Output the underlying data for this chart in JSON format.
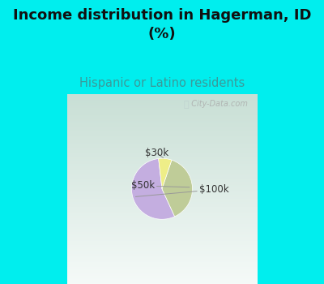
{
  "title": "Income distribution in Hagerman, ID\n(%)",
  "subtitle": "Hispanic or Latino residents",
  "title_fontsize": 13,
  "subtitle_fontsize": 10.5,
  "title_color": "#111111",
  "subtitle_color": "#3a9a9a",
  "background_color": "#00eeee",
  "chart_bg_gradient_top": "#e0eeea",
  "chart_bg_gradient_bottom": "#c8e8d8",
  "slices": [
    {
      "label": "$100k",
      "value": 55,
      "color": "#c4aee0"
    },
    {
      "label": "$50k",
      "value": 38,
      "color": "#bfcc98"
    },
    {
      "label": "$30k",
      "value": 7,
      "color": "#eeee88"
    }
  ],
  "label_fontsize": 8.5,
  "label_color": "#333333",
  "watermark": "City-Data.com",
  "startangle": 96.6
}
